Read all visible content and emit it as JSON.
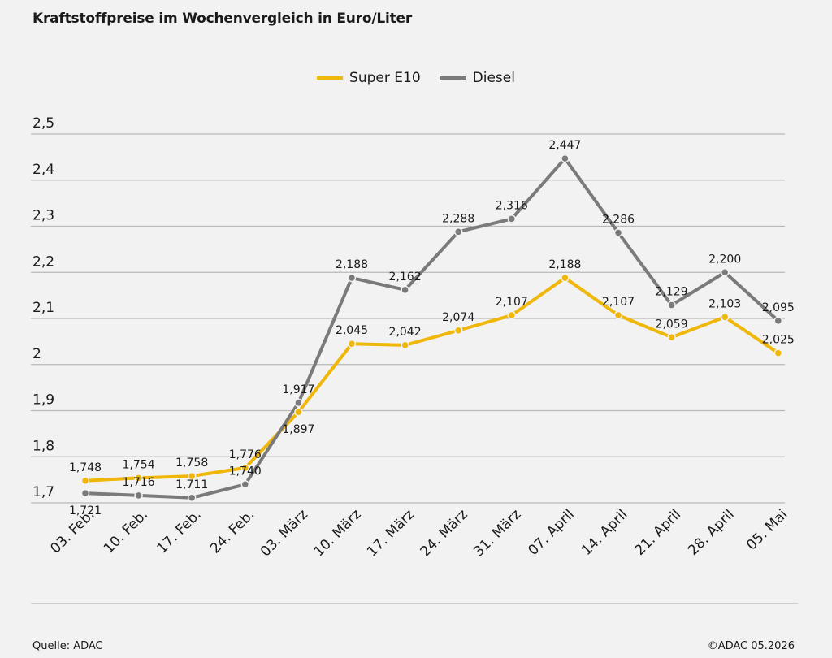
{
  "chart_data": {
    "type": "line",
    "title": "Kraftstoffpreise im Wochenvergleich in Euro/Liter",
    "categories": [
      "03. Feb.",
      "10. Feb.",
      "17. Feb.",
      "24. Feb.",
      "03. März",
      "10. März",
      "17. März",
      "24. März",
      "31. März",
      "07. April",
      "14. April",
      "21. April",
      "28. April",
      "05. Mai"
    ],
    "series": [
      {
        "name": "Super E10",
        "color": "#f0b70b",
        "values": [
          1.748,
          1.754,
          1.758,
          1.776,
          1.897,
          2.045,
          2.042,
          2.074,
          2.107,
          2.188,
          2.107,
          2.059,
          2.103,
          2.025
        ],
        "labels": [
          "1,748",
          "1,754",
          "1,758",
          "1,776",
          "1,897",
          "2,045",
          "2,042",
          "2,074",
          "2,107",
          "2,188",
          "2,107",
          "2,059",
          "2,103",
          "2,025"
        ]
      },
      {
        "name": "Diesel",
        "color": "#7a7a7a",
        "values": [
          1.721,
          1.716,
          1.711,
          1.74,
          1.917,
          2.188,
          2.162,
          2.288,
          2.316,
          2.447,
          2.286,
          2.129,
          2.2,
          2.095
        ],
        "labels": [
          "1,721",
          "1,716",
          "1,711",
          "1,740",
          "1,917",
          "2,188",
          "2,162",
          "2,288",
          "2,316",
          "2,447",
          "2,286",
          "2,129",
          "2,200",
          "2,095"
        ]
      }
    ],
    "yticks": [
      "2,5",
      "2,4",
      "2,3",
      "2,2",
      "2,1",
      "2",
      "1,9",
      "1,8",
      "1,7"
    ],
    "ytick_values": [
      2.5,
      2.4,
      2.3,
      2.2,
      2.1,
      2.0,
      1.9,
      1.8,
      1.7
    ],
    "ylim": [
      1.7,
      2.5
    ],
    "grid": true,
    "legend_position": "top-center"
  },
  "footer": {
    "source": "Quelle: ADAC",
    "copyright": "©ADAC 05.2026"
  }
}
